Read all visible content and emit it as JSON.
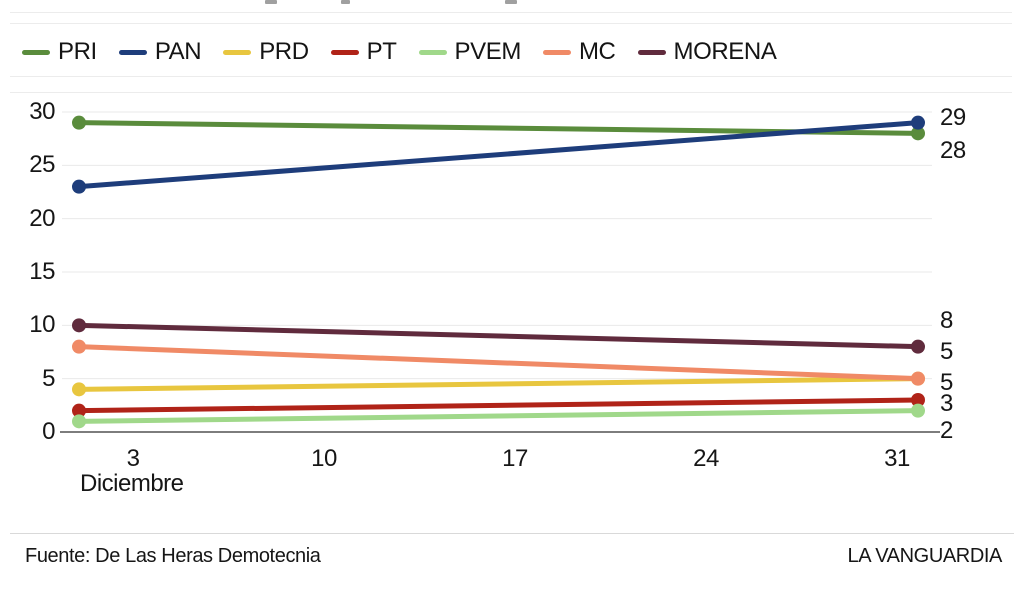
{
  "legend": {
    "items": [
      {
        "label": "PRI",
        "color": "#5a8c3c"
      },
      {
        "label": "PAN",
        "color": "#1e3d7b"
      },
      {
        "label": "PRD",
        "color": "#e8c63f"
      },
      {
        "label": "PT",
        "color": "#b02318"
      },
      {
        "label": "PVEM",
        "color": "#a0d88a"
      },
      {
        "label": "MC",
        "color": "#f08a66"
      },
      {
        "label": "MORENA",
        "color": "#602b3d"
      }
    ]
  },
  "chart_data": {
    "type": "line",
    "title": "",
    "xlabel": "Diciembre",
    "ylabel": "",
    "ylim": [
      0,
      30
    ],
    "y_ticks": [
      0,
      5,
      10,
      15,
      20,
      25,
      30
    ],
    "x_ticks": [
      3,
      10,
      17,
      24,
      31
    ],
    "grid": true,
    "legend_position": "top",
    "series": [
      {
        "name": "PRI",
        "color": "#5a8c3c",
        "values": [
          29,
          28
        ]
      },
      {
        "name": "PAN",
        "color": "#1e3d7b",
        "values": [
          23,
          29
        ]
      },
      {
        "name": "PRD",
        "color": "#e8c63f",
        "values": [
          4,
          5
        ]
      },
      {
        "name": "PT",
        "color": "#b02318",
        "values": [
          2,
          3
        ]
      },
      {
        "name": "PVEM",
        "color": "#a0d88a",
        "values": [
          1,
          2
        ]
      },
      {
        "name": "MC",
        "color": "#f08a66",
        "values": [
          8,
          5
        ]
      },
      {
        "name": "MORENA",
        "color": "#602b3d",
        "values": [
          10,
          8
        ]
      }
    ],
    "right_end_labels": [
      "29",
      "28",
      "8",
      "5",
      "5",
      "3",
      "2"
    ]
  },
  "footer": {
    "source": "Fuente: De Las Heras Demotecnia",
    "brand": "LA VANGUARDIA"
  }
}
